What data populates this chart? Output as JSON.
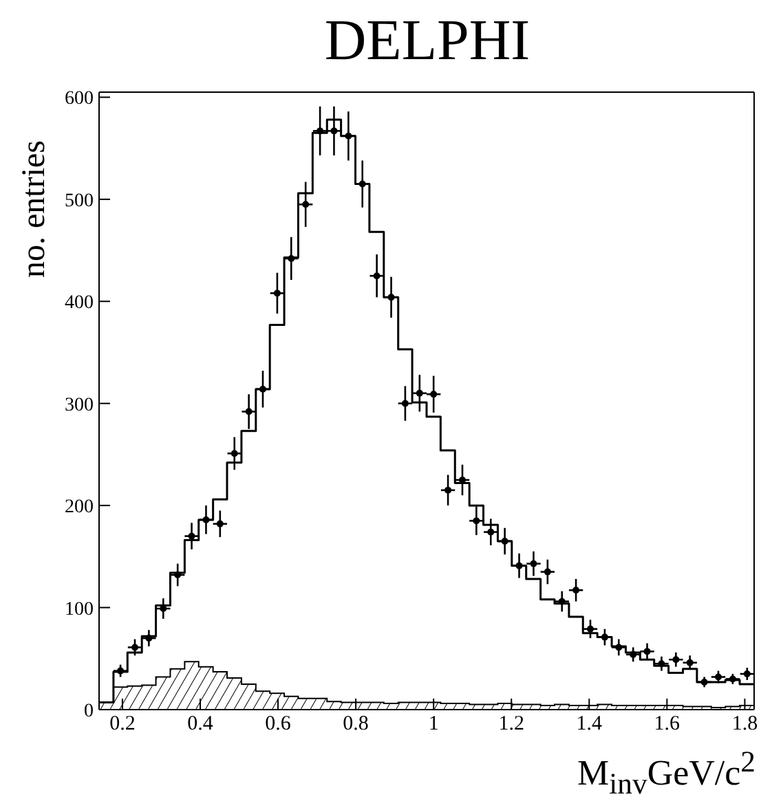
{
  "chart_data": {
    "type": "histogram",
    "title": "DELPHI",
    "xlabel": "M$_{inv}$GeV/c$^{2}$",
    "ylabel": "no. entries",
    "bins": [
      0.14,
      0.177,
      0.213,
      0.25,
      0.286,
      0.323,
      0.36,
      0.396,
      0.433,
      0.469,
      0.506,
      0.543,
      0.579,
      0.616,
      0.652,
      0.689,
      0.726,
      0.762,
      0.799,
      0.835,
      0.872,
      0.909,
      0.945,
      0.982,
      1.018,
      1.055,
      1.092,
      1.128,
      1.165,
      1.201,
      1.238,
      1.275,
      1.311,
      1.348,
      1.384,
      1.421,
      1.458,
      1.494,
      1.531,
      1.567,
      1.604,
      1.641,
      1.677,
      1.714,
      1.75,
      1.787,
      1.824
    ],
    "xlim": [
      0.14,
      1.824
    ],
    "xticks": [
      {
        "value": 0.2,
        "label": "0.2"
      },
      {
        "value": 0.4,
        "label": "0.4"
      },
      {
        "value": 0.6,
        "label": "0.6"
      },
      {
        "value": 0.8,
        "label": "0.8"
      },
      1,
      {
        "value": 1.2,
        "label": "1.2"
      },
      {
        "value": 1.4,
        "label": "1.4"
      },
      {
        "value": 1.6,
        "label": "1.6"
      },
      {
        "value": 1.8,
        "label": "1.8"
      }
    ],
    "ylim": [
      0,
      605
    ],
    "yticks": [
      0,
      100,
      200,
      300,
      400,
      500,
      600
    ],
    "series": [
      {
        "color": "#000000",
        "values": [
          7,
          37,
          56,
          72,
          102,
          134,
          166,
          186,
          206,
          242,
          273,
          314,
          377,
          443,
          506,
          565,
          578,
          562,
          515,
          468,
          404,
          353,
          301,
          287,
          254,
          222,
          200,
          181,
          165,
          141,
          128,
          108,
          104,
          91,
          75,
          71,
          62,
          56,
          49,
          43,
          36,
          40,
          27,
          27,
          29,
          25
        ]
      },
      {
        "color": "#000000",
        "values": [
          7,
          22,
          23,
          24,
          32,
          40,
          47,
          42,
          37,
          31,
          25,
          18,
          16,
          13,
          11,
          11,
          8,
          7,
          7,
          7,
          6,
          7,
          7,
          7,
          6,
          6,
          5,
          5,
          6,
          5,
          5,
          4,
          5,
          4,
          4,
          5,
          4,
          4,
          4,
          4,
          4,
          3,
          3,
          2,
          3,
          4
        ]
      },
      {
        "type": "scatter",
        "color": "#000000",
        "x": [
          0.195,
          0.232,
          0.268,
          0.305,
          0.342,
          0.378,
          0.415,
          0.451,
          0.488,
          0.525,
          0.561,
          0.598,
          0.634,
          0.671,
          0.708,
          0.744,
          0.781,
          0.817,
          0.854,
          0.891,
          0.927,
          0.964,
          1.0,
          1.037,
          1.074,
          1.11,
          1.147,
          1.183,
          1.22,
          1.257,
          1.293,
          1.33,
          1.366,
          1.403,
          1.44,
          1.476,
          1.513,
          1.549,
          1.586,
          1.623,
          1.659,
          1.696,
          1.732,
          1.769,
          1.806
        ],
        "values": [
          38,
          61,
          70,
          99,
          132,
          170,
          186,
          182,
          251,
          292,
          314,
          408,
          442,
          495,
          567,
          567,
          562,
          515,
          425,
          404,
          300,
          310,
          309,
          215,
          225,
          185,
          174,
          165,
          141,
          143,
          135,
          106,
          117,
          79,
          71,
          61,
          54,
          57,
          45,
          49,
          46,
          27,
          32,
          30,
          35
        ],
        "errors": [
          6,
          8,
          8,
          10,
          11,
          13,
          14,
          13,
          16,
          17,
          18,
          20,
          21,
          22,
          24,
          24,
          24,
          23,
          21,
          20,
          17,
          18,
          18,
          15,
          15,
          14,
          13,
          13,
          12,
          12,
          12,
          10,
          11,
          9,
          8,
          8,
          7,
          8,
          7,
          7,
          7,
          5,
          6,
          5,
          6
        ],
        "xerrors": [
          0.018,
          0.018,
          0.018,
          0.018,
          0.018,
          0.018,
          0.018,
          0.018,
          0.018,
          0.018,
          0.018,
          0.018,
          0.018,
          0.018,
          0.018,
          0.018,
          0.018,
          0.018,
          0.018,
          0.018,
          0.018,
          0.018,
          0.018,
          0.018,
          0.018,
          0.018,
          0.018,
          0.018,
          0.018,
          0.018,
          0.018,
          0.018,
          0.018,
          0.018,
          0.018,
          0.018,
          0.018,
          0.018,
          0.018,
          0.018,
          0.018,
          0.018,
          0.018,
          0.018,
          0.018
        ]
      }
    ]
  }
}
